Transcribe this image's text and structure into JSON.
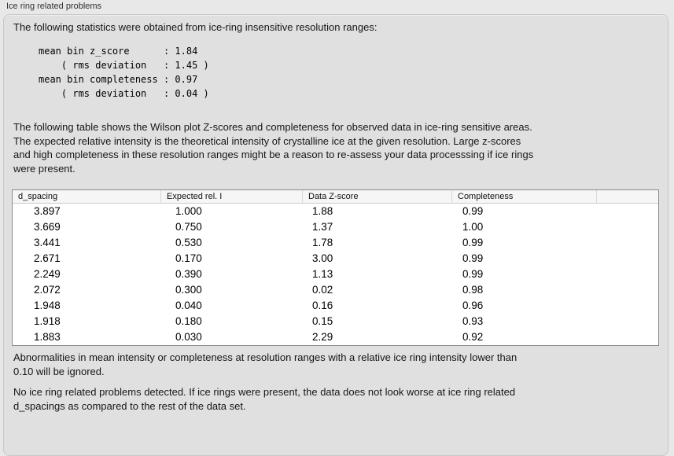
{
  "panel": {
    "title": "Ice ring related problems"
  },
  "intro": {
    "text": "The following statistics were obtained from ice-ring insensitive resolution ranges:",
    "stats_block": "mean bin z_score      : 1.84\n    ( rms deviation   : 1.45 )\nmean bin completeness : 0.97\n    ( rms deviation   : 0.04 )"
  },
  "description": {
    "text": "The following table shows the Wilson plot Z-scores and completeness for observed data in ice-ring sensitive areas.\nThe expected relative intensity is the theoretical intensity of crystalline ice at the given resolution. Large z-scores\nand high completeness in these resolution ranges might be a reason to re-assess your data processsing if ice rings\nwere present."
  },
  "table": {
    "columns": [
      "d_spacing",
      "Expected rel. I",
      "Data Z-score",
      "Completeness"
    ],
    "rows": [
      [
        "3.897",
        "1.000",
        "1.88",
        "0.99"
      ],
      [
        "3.669",
        "0.750",
        "1.37",
        "1.00"
      ],
      [
        "3.441",
        "0.530",
        "1.78",
        "0.99"
      ],
      [
        "2.671",
        "0.170",
        "3.00",
        "0.99"
      ],
      [
        "2.249",
        "0.390",
        "1.13",
        "0.99"
      ],
      [
        "2.072",
        "0.300",
        "0.02",
        "0.98"
      ],
      [
        "1.948",
        "0.040",
        "0.16",
        "0.96"
      ],
      [
        "1.918",
        "0.180",
        "0.15",
        "0.93"
      ],
      [
        "1.883",
        "0.030",
        "2.29",
        "0.92"
      ]
    ]
  },
  "notes": {
    "ignore_note": "Abnormalities in mean intensity or completeness at resolution ranges with a relative ice ring intensity lower than\n0.10 will be ignored.",
    "conclusion": "No ice ring related problems detected. If ice rings were present, the data does not look worse at ice ring related\nd_spacings as compared to the rest of the data set."
  },
  "colors": {
    "page_background": "#e8e8e8",
    "panel_background": "#e0e0e0",
    "panel_border": "#c8c8c8",
    "table_border": "#8a8a8a",
    "table_header_background": "#f6f6f6",
    "table_body_background": "#ffffff",
    "text": "#1c1c1c"
  }
}
